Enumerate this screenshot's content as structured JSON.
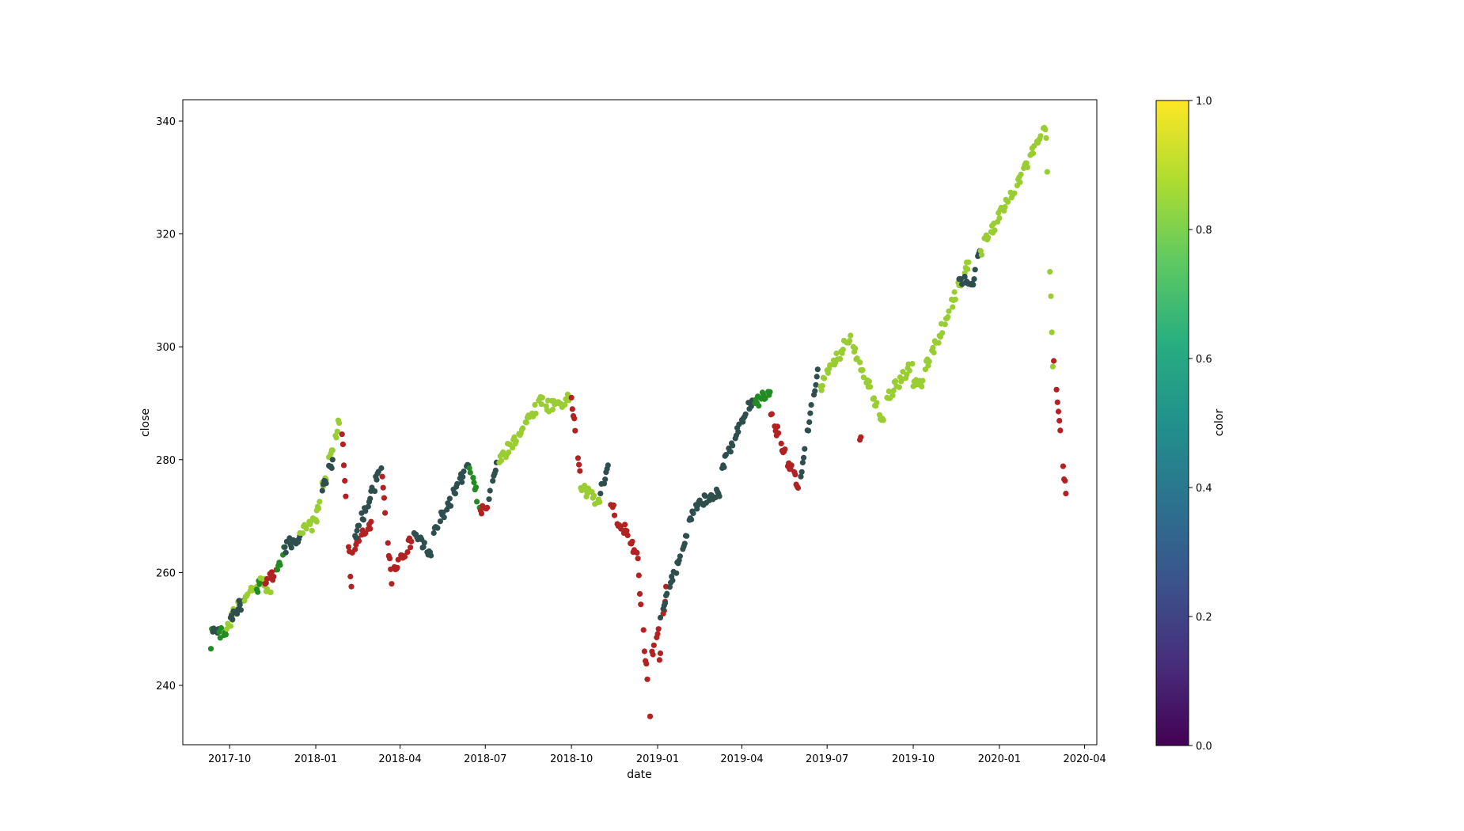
{
  "chart_data": {
    "type": "scatter",
    "title": "",
    "xlabel": "date",
    "ylabel": "close",
    "xlim": [
      "2017-08-12",
      "2020-04-14"
    ],
    "ylim": [
      228.5,
      340
    ],
    "x_ticks": [
      "2017-10",
      "2018-01",
      "2018-04",
      "2018-07",
      "2018-10",
      "2019-01",
      "2019-04",
      "2019-07",
      "2019-10",
      "2020-01",
      "2020-04"
    ],
    "y_ticks": [
      240,
      260,
      280,
      300,
      320,
      340
    ],
    "grid": false,
    "legend": "none",
    "colorbar": {
      "label": "color",
      "colormap": "viridis",
      "range": [
        0,
        1
      ],
      "ticks": [
        "0.0",
        "0.2",
        "0.4",
        "0.6",
        "0.8",
        "1.0"
      ]
    },
    "category_colors": {
      "dark": "#2f4f4f",
      "light": "#9acd32",
      "red": "#b22222",
      "green": "#228b22"
    },
    "legs": [
      [
        "2017-09-11",
        246.5,
        "2017-09-12",
        250.0,
        "green"
      ],
      [
        "2017-09-13",
        249.5,
        "2017-09-19",
        250.0,
        "dark"
      ],
      [
        "2017-09-20",
        249.5,
        "2017-09-27",
        249.0,
        "green"
      ],
      [
        "2017-09-28",
        250.0,
        "2017-10-12",
        255.0,
        "light"
      ],
      [
        "2017-10-02",
        252.0,
        "2017-10-16",
        255.0,
        "dark"
      ],
      [
        "2017-10-17",
        255.0,
        "2017-10-30",
        257.5,
        "light"
      ],
      [
        "2017-10-30",
        257.0,
        "2017-11-06",
        258.5,
        "green"
      ],
      [
        "2017-11-03",
        259.0,
        "2017-11-14",
        256.5,
        "light"
      ],
      [
        "2017-11-08",
        258.0,
        "2017-11-20",
        260.5,
        "red"
      ],
      [
        "2017-11-21",
        260.5,
        "2017-11-28",
        264.5,
        "green"
      ],
      [
        "2017-11-29",
        264.5,
        "2017-12-15",
        266.5,
        "dark"
      ],
      [
        "2017-12-15",
        267.0,
        "2018-01-02",
        269.0,
        "light"
      ],
      [
        "2018-01-02",
        271.0,
        "2018-01-26",
        286.5,
        "light"
      ],
      [
        "2018-01-08",
        274.5,
        "2018-01-19",
        280.0,
        "dark"
      ],
      [
        "2018-01-29",
        284.5,
        "2018-02-08",
        257.5,
        "red"
      ],
      [
        "2018-02-09",
        263.5,
        "2018-03-01",
        269.0,
        "red"
      ],
      [
        "2018-02-12",
        266.5,
        "2018-03-12",
        278.5,
        "dark"
      ],
      [
        "2018-03-13",
        277.0,
        "2018-03-23",
        258.0,
        "red"
      ],
      [
        "2018-03-26",
        261.0,
        "2018-04-13",
        265.5,
        "red"
      ],
      [
        "2018-04-16",
        267.0,
        "2018-05-04",
        263.0,
        "dark"
      ],
      [
        "2018-05-07",
        267.0,
        "2018-06-13",
        279.0,
        "dark"
      ],
      [
        "2018-06-14",
        278.5,
        "2018-06-25",
        271.5,
        "green"
      ],
      [
        "2018-06-26",
        271.0,
        "2018-07-03",
        271.5,
        "red"
      ],
      [
        "2018-07-05",
        273.0,
        "2018-07-13",
        279.5,
        "dark"
      ],
      [
        "2018-07-16",
        279.5,
        "2018-08-31",
        291.0,
        "light"
      ],
      [
        "2018-09-04",
        289.5,
        "2018-09-28",
        290.5,
        "light"
      ],
      [
        "2018-10-01",
        291.0,
        "2018-10-10",
        278.0,
        "red"
      ],
      [
        "2018-10-11",
        275.0,
        "2018-10-31",
        272.5,
        "light"
      ],
      [
        "2018-11-01",
        274.0,
        "2018-11-09",
        279.0,
        "dark"
      ],
      [
        "2018-11-12",
        272.0,
        "2018-11-26",
        267.0,
        "red"
      ],
      [
        "2018-11-27",
        268.5,
        "2018-12-07",
        264.0,
        "red"
      ],
      [
        "2018-12-10",
        263.5,
        "2018-12-24",
        234.5,
        "red"
      ],
      [
        "2018-12-26",
        246.0,
        "2019-01-02",
        250.0,
        "red"
      ],
      [
        "2019-01-03",
        244.5,
        "2019-01-10",
        257.5,
        "red"
      ],
      [
        "2019-01-04",
        252.0,
        "2019-02-08",
        270.5,
        "dark"
      ],
      [
        "2019-02-11",
        272.0,
        "2019-03-07",
        274.0,
        "dark"
      ],
      [
        "2019-03-08",
        273.5,
        "2019-03-11",
        278.5,
        "dark"
      ],
      [
        "2019-03-12",
        279.0,
        "2019-04-12",
        290.5,
        "dark"
      ],
      [
        "2019-04-15",
        290.0,
        "2019-05-01",
        292.0,
        "green"
      ],
      [
        "2019-05-02",
        288.0,
        "2019-05-31",
        275.0,
        "red"
      ],
      [
        "2019-06-03",
        277.0,
        "2019-06-21",
        296.0,
        "dark"
      ],
      [
        "2019-06-24",
        293.0,
        "2019-07-26",
        302.0,
        "light"
      ],
      [
        "2019-07-29",
        300.0,
        "2019-08-30",
        287.0,
        "light"
      ],
      [
        "2019-08-05",
        283.5,
        "2019-08-06",
        284.0,
        "red"
      ],
      [
        "2019-09-03",
        291.0,
        "2019-09-30",
        297.0,
        "light"
      ],
      [
        "2019-10-01",
        293.0,
        "2019-10-11",
        294.0,
        "light"
      ],
      [
        "2019-10-14",
        296.0,
        "2019-11-29",
        315.0,
        "light"
      ],
      [
        "2019-11-19",
        312.0,
        "2019-12-04",
        311.0,
        "dark"
      ],
      [
        "2019-12-05",
        312.0,
        "2019-12-11",
        317.0,
        "dark"
      ],
      [
        "2019-12-12",
        317.0,
        "2020-02-19",
        338.5,
        "light"
      ],
      [
        "2020-02-20",
        337.0,
        "2020-02-27",
        296.5,
        "light"
      ],
      [
        "2020-02-28",
        297.5,
        "2020-03-12",
        274.0,
        "red"
      ]
    ]
  }
}
